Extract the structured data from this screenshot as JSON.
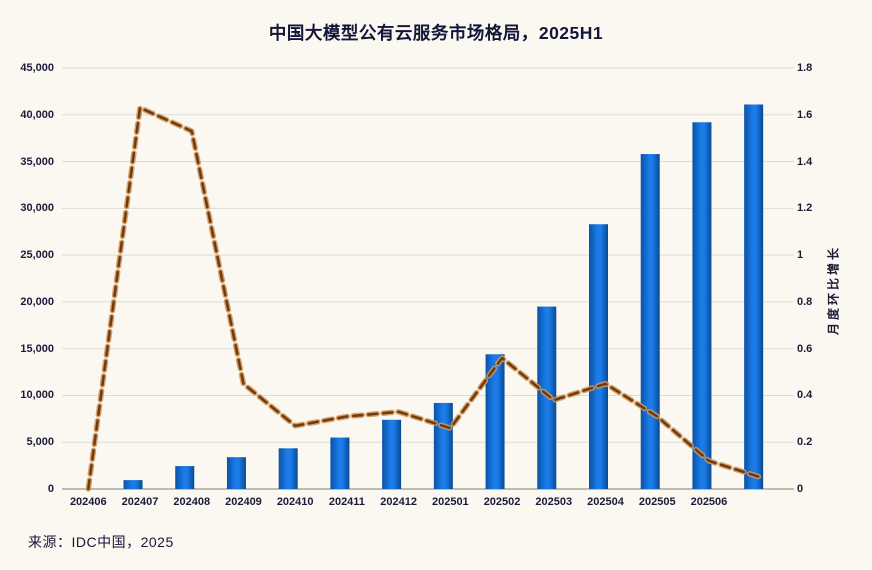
{
  "title": "中国大模型公有云服务市场格局，2025H1",
  "source": "来源：IDC中国，2025",
  "chart_data": {
    "type": "bar",
    "subtype": "combo-bar-line-dual-axis",
    "title": "中国大模型公有云服务市场格局，2025H1",
    "categories": [
      "202406",
      "202407",
      "202408",
      "202409",
      "202410",
      "202411",
      "202412",
      "202501",
      "202502",
      "202503",
      "202504",
      "202505",
      "202506",
      ""
    ],
    "bars": {
      "axis": "left",
      "values": [
        0,
        950,
        2450,
        3400,
        4350,
        5500,
        7400,
        9200,
        14400,
        19500,
        28300,
        35800,
        39200,
        41100
      ]
    },
    "line_series": {
      "name": "月度环比增长",
      "axis": "right",
      "style": "dashed",
      "values": [
        0,
        1.63,
        1.53,
        0.45,
        0.27,
        0.31,
        0.33,
        0.26,
        0.56,
        0.38,
        0.45,
        0.31,
        0.12,
        0.05
      ]
    },
    "left_axis": {
      "min": 0,
      "max": 45000,
      "step": 5000,
      "tick_labels": [
        "0",
        "5,000",
        "10,000",
        "15,000",
        "20,000",
        "25,000",
        "30,000",
        "35,000",
        "40,000",
        "45,000"
      ]
    },
    "right_axis": {
      "min": 0,
      "max": 1.8,
      "step": 0.2,
      "label": "月度环比增长",
      "tick_labels": [
        "0",
        "0.2",
        "0.4",
        "0.6",
        "0.8",
        "1",
        "1.2",
        "1.4",
        "1.6",
        "1.8"
      ]
    },
    "grid": "horizontal",
    "legend": "none",
    "colors": {
      "background": "#faf8f1",
      "bar_center": "#1b7ce9",
      "bar_edge": "#0a52a6",
      "bar_edge_right": "#084a92",
      "line_core": "#713a10",
      "line_halo": "#d09a5e",
      "gridline": "#dedcd4",
      "baseline": "#a9a79d",
      "text": "#1b1b38"
    }
  }
}
